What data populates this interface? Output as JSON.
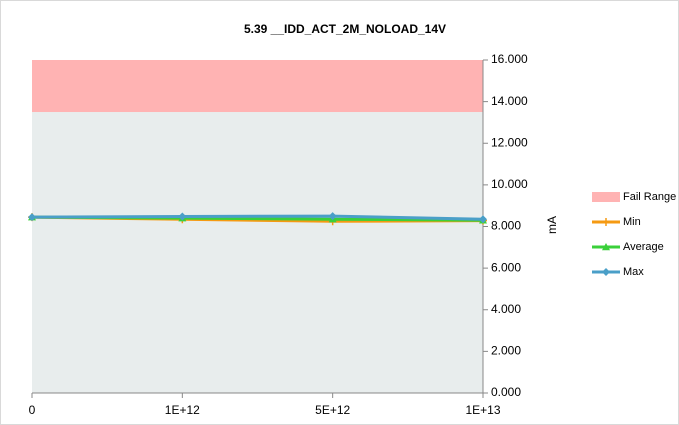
{
  "chart_data": {
    "type": "line",
    "title": "5.39 __IDD_ACT_2M_NOLOAD_14V",
    "y_label": "mA",
    "categories": [
      "0",
      "1E+12",
      "5E+12",
      "1E+13"
    ],
    "fail_range": {
      "name": "Fail Range",
      "color": "#ffb3b3",
      "from": 13.5,
      "to": 16
    },
    "pass_color": "#e8eded",
    "series": [
      {
        "name": "Min",
        "color": "#f59a12",
        "marker": "cross",
        "values": [
          8.45,
          8.35,
          8.25,
          8.28
        ]
      },
      {
        "name": "Average",
        "color": "#3ad03a",
        "marker": "triangle",
        "values": [
          8.45,
          8.4,
          8.35,
          8.3
        ]
      },
      {
        "name": "Max",
        "color": "#4a9fc8",
        "marker": "diamond",
        "values": [
          8.45,
          8.48,
          8.5,
          8.35
        ]
      }
    ],
    "ylim": [
      0,
      16
    ],
    "yticks": [
      {
        "value": 0,
        "label": "0.000"
      },
      {
        "value": 2,
        "label": "2.000"
      },
      {
        "value": 4,
        "label": "4.000"
      },
      {
        "value": 6,
        "label": "6.000"
      },
      {
        "value": 8,
        "label": "8.000"
      },
      {
        "value": 10,
        "label": "10.000"
      },
      {
        "value": 12,
        "label": "12.000"
      },
      {
        "value": 14,
        "label": "14.000"
      },
      {
        "value": 16,
        "label": "16.000"
      }
    ],
    "legend": "right"
  }
}
